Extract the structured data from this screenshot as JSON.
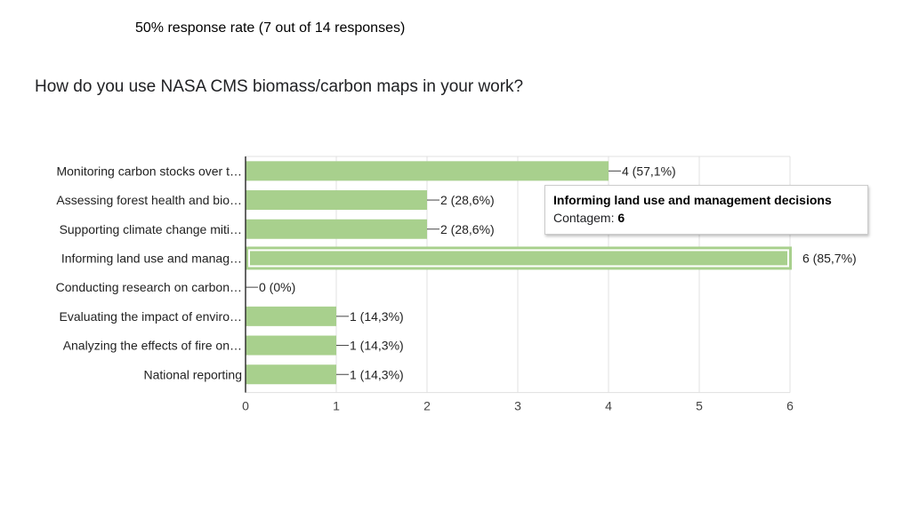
{
  "header": {
    "response_rate": "50% response rate (7 out of 14 responses)"
  },
  "question": {
    "title": "How do you use NASA CMS biomass/carbon maps in your work?"
  },
  "tooltip": {
    "title": "Informing land use and management decisions",
    "count_label": "Contagem:",
    "count_value": "6"
  },
  "colors": {
    "bar": "#a8d08d",
    "bar_border": "#8bbf6c",
    "highlight_border": "#ffffff",
    "grid": "#e0e0e0",
    "axis": "#444444"
  },
  "chart_data": {
    "type": "bar",
    "orientation": "horizontal",
    "categories": [
      "Monitoring carbon stocks over t…",
      "Assessing forest health and bio…",
      "Supporting climate change miti…",
      "Informing land use and manag…",
      "Conducting research on carbon…",
      "Evaluating the impact of enviro…",
      "Analyzing the effects of fire on…",
      "National reporting"
    ],
    "values": [
      4,
      2,
      2,
      6,
      0,
      1,
      1,
      1
    ],
    "data_labels": [
      "4 (57,1%)",
      "2 (28,6%)",
      "2 (28,6%)",
      "6 (85,7%)",
      "0 (0%)",
      "1 (14,3%)",
      "1 (14,3%)",
      "1 (14,3%)"
    ],
    "x_ticks": [
      "0",
      "1",
      "2",
      "3",
      "4",
      "5",
      "6"
    ],
    "xlim": [
      0,
      6
    ],
    "grid": true,
    "highlighted_category": "Informing land use and manag…"
  }
}
